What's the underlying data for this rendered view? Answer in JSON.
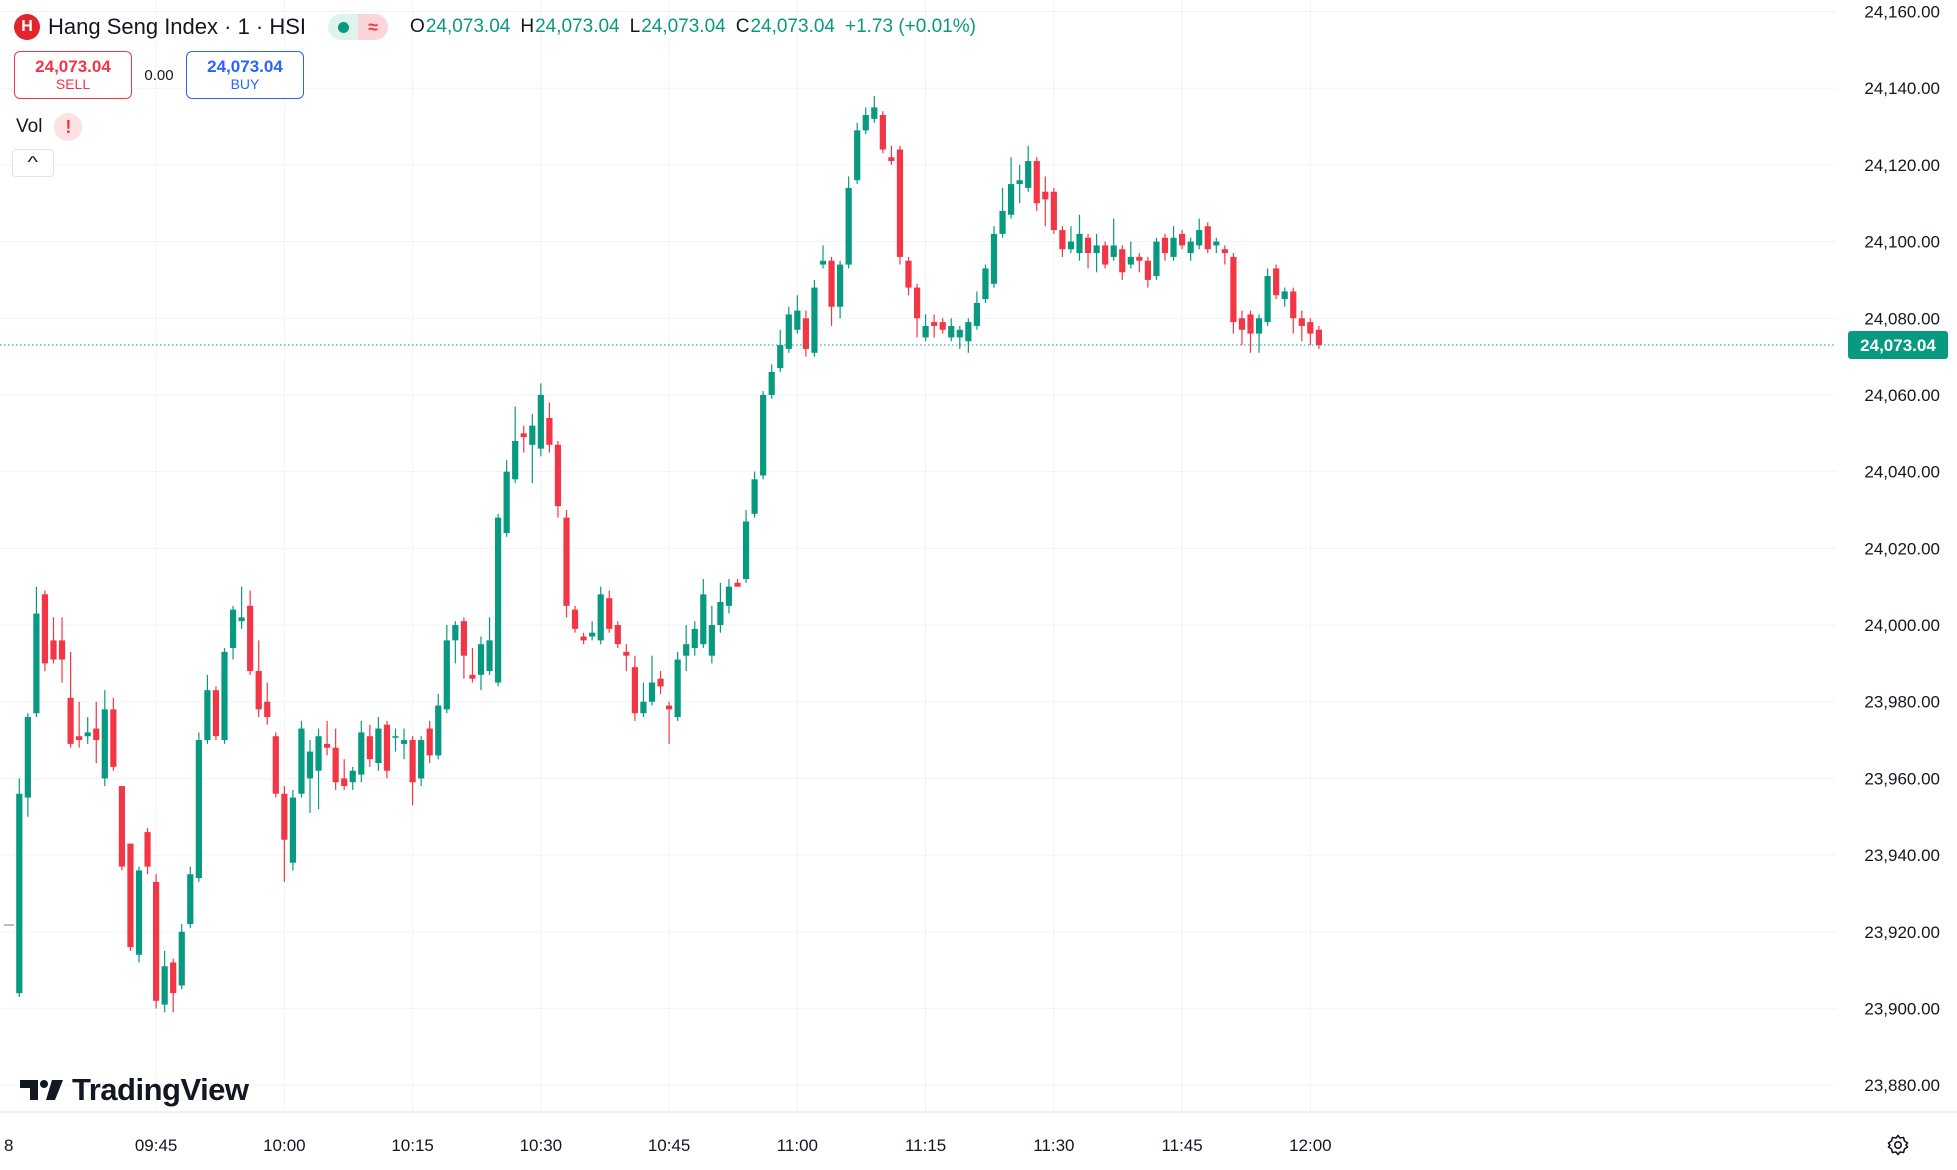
{
  "header": {
    "symbol_title": "Hang Seng Index · 1 · HSI",
    "ohlc": {
      "open_label": "O",
      "open": "24,073.04",
      "high_label": "H",
      "high": "24,073.04",
      "low_label": "L",
      "low": "24,073.04",
      "close_label": "C",
      "close": "24,073.04",
      "change": "+1.73 (+0.01%)"
    },
    "delay_glyph": "≈"
  },
  "trade": {
    "sell_price": "24,073.04",
    "sell_label": "SELL",
    "spread": "0.00",
    "buy_price": "24,073.04",
    "buy_label": "BUY"
  },
  "indicator": {
    "vol_label": "Vol",
    "warning_glyph": "!"
  },
  "brand": {
    "name": "TradingView"
  },
  "colors": {
    "up": "#089981",
    "down": "#f23645",
    "grid": "#f0f3fa",
    "text": "#131722"
  },
  "chart_data": {
    "type": "candlestick",
    "xlabel": "",
    "ylabel": "",
    "ylim": [
      23873,
      24163
    ],
    "y_ticks": [
      23880,
      23900,
      23920,
      23940,
      23960,
      23980,
      24000,
      24020,
      24040,
      24060,
      24080,
      24100,
      24120,
      24140,
      24160
    ],
    "y_tick_labels": [
      "23,880.00",
      "23,900.00",
      "23,920.00",
      "23,940.00",
      "23,960.00",
      "23,980.00",
      "24,000.00",
      "24,020.00",
      "24,040.00",
      "24,060.00",
      "24,080.00",
      "24,100.00",
      "24,120.00",
      "24,140.00",
      "24,160.00"
    ],
    "x_ticks": [
      {
        "minute": 45,
        "label": "09:45"
      },
      {
        "minute": 60,
        "label": "10:00"
      },
      {
        "minute": 75,
        "label": "10:15"
      },
      {
        "minute": 90,
        "label": "10:30"
      },
      {
        "minute": 105,
        "label": "10:45"
      },
      {
        "minute": 120,
        "label": "11:00"
      },
      {
        "minute": 135,
        "label": "11:15"
      },
      {
        "minute": 150,
        "label": "11:30"
      },
      {
        "minute": 165,
        "label": "11:45"
      },
      {
        "minute": 180,
        "label": "12:00"
      }
    ],
    "x_edge_label": "8",
    "last_price": 24073.04,
    "last_price_label": "24,073.04",
    "grid": true,
    "candles": [
      {
        "t": 29,
        "o": 23904,
        "h": 23960,
        "l": 23903,
        "c": 23956
      },
      {
        "t": 30,
        "o": 23955,
        "h": 23977,
        "l": 23950,
        "c": 23976
      },
      {
        "t": 31,
        "o": 23977,
        "h": 24010,
        "l": 23976,
        "c": 24003
      },
      {
        "t": 32,
        "o": 24008,
        "h": 24009,
        "l": 23988,
        "c": 23990
      },
      {
        "t": 33,
        "o": 23996,
        "h": 24002,
        "l": 23990,
        "c": 23991
      },
      {
        "t": 34,
        "o": 23996,
        "h": 24002,
        "l": 23985,
        "c": 23991
      },
      {
        "t": 35,
        "o": 23981,
        "h": 23993,
        "l": 23968,
        "c": 23969
      },
      {
        "t": 36,
        "o": 23971,
        "h": 23980,
        "l": 23968,
        "c": 23970
      },
      {
        "t": 37,
        "o": 23971,
        "h": 23976,
        "l": 23969,
        "c": 23972
      },
      {
        "t": 38,
        "o": 23973,
        "h": 23980,
        "l": 23964,
        "c": 23970
      },
      {
        "t": 39,
        "o": 23960,
        "h": 23983,
        "l": 23958,
        "c": 23978
      },
      {
        "t": 40,
        "o": 23978,
        "h": 23981,
        "l": 23962,
        "c": 23963
      },
      {
        "t": 41,
        "o": 23958,
        "h": 23958,
        "l": 23936,
        "c": 23937
      },
      {
        "t": 42,
        "o": 23943,
        "h": 23943,
        "l": 23915,
        "c": 23916
      },
      {
        "t": 43,
        "o": 23914,
        "h": 23937,
        "l": 23912,
        "c": 23936
      },
      {
        "t": 44,
        "o": 23946,
        "h": 23947,
        "l": 23935,
        "c": 23937
      },
      {
        "t": 45,
        "o": 23933,
        "h": 23935,
        "l": 23900,
        "c": 23902
      },
      {
        "t": 46,
        "o": 23901,
        "h": 23915,
        "l": 23899,
        "c": 23911
      },
      {
        "t": 47,
        "o": 23912,
        "h": 23913,
        "l": 23899,
        "c": 23904
      },
      {
        "t": 48,
        "o": 23906,
        "h": 23922,
        "l": 23905,
        "c": 23920
      },
      {
        "t": 49,
        "o": 23922,
        "h": 23937,
        "l": 23921,
        "c": 23935
      },
      {
        "t": 50,
        "o": 23934,
        "h": 23972,
        "l": 23933,
        "c": 23970
      },
      {
        "t": 51,
        "o": 23970,
        "h": 23987,
        "l": 23969,
        "c": 23983
      },
      {
        "t": 52,
        "o": 23983,
        "h": 23984,
        "l": 23970,
        "c": 23971
      },
      {
        "t": 53,
        "o": 23970,
        "h": 23994,
        "l": 23969,
        "c": 23993
      },
      {
        "t": 54,
        "o": 23994,
        "h": 24005,
        "l": 23991,
        "c": 24004
      },
      {
        "t": 55,
        "o": 24001,
        "h": 24010,
        "l": 23999,
        "c": 24002
      },
      {
        "t": 56,
        "o": 24005,
        "h": 24009,
        "l": 23987,
        "c": 23988
      },
      {
        "t": 57,
        "o": 23988,
        "h": 23996,
        "l": 23976,
        "c": 23978
      },
      {
        "t": 58,
        "o": 23980,
        "h": 23985,
        "l": 23974,
        "c": 23976
      },
      {
        "t": 59,
        "o": 23971,
        "h": 23972,
        "l": 23955,
        "c": 23956
      },
      {
        "t": 60,
        "o": 23956,
        "h": 23958,
        "l": 23933,
        "c": 23944
      },
      {
        "t": 61,
        "o": 23938,
        "h": 23957,
        "l": 23936,
        "c": 23955
      },
      {
        "t": 62,
        "o": 23956,
        "h": 23975,
        "l": 23955,
        "c": 23973
      },
      {
        "t": 63,
        "o": 23960,
        "h": 23970,
        "l": 23951,
        "c": 23967
      },
      {
        "t": 64,
        "o": 23962,
        "h": 23973,
        "l": 23952,
        "c": 23971
      },
      {
        "t": 65,
        "o": 23969,
        "h": 23975,
        "l": 23966,
        "c": 23968
      },
      {
        "t": 66,
        "o": 23968,
        "h": 23973,
        "l": 23957,
        "c": 23959
      },
      {
        "t": 67,
        "o": 23960,
        "h": 23965,
        "l": 23957,
        "c": 23958
      },
      {
        "t": 68,
        "o": 23959,
        "h": 23963,
        "l": 23957,
        "c": 23962
      },
      {
        "t": 69,
        "o": 23961,
        "h": 23975,
        "l": 23959,
        "c": 23972
      },
      {
        "t": 70,
        "o": 23971,
        "h": 23974,
        "l": 23963,
        "c": 23965
      },
      {
        "t": 71,
        "o": 23964,
        "h": 23976,
        "l": 23962,
        "c": 23973
      },
      {
        "t": 72,
        "o": 23974,
        "h": 23975,
        "l": 23960,
        "c": 23962
      },
      {
        "t": 73,
        "o": 23971,
        "h": 23973,
        "l": 23967,
        "c": 23971
      },
      {
        "t": 74,
        "o": 23969,
        "h": 23973,
        "l": 23965,
        "c": 23970
      },
      {
        "t": 75,
        "o": 23970,
        "h": 23971,
        "l": 23953,
        "c": 23959
      },
      {
        "t": 76,
        "o": 23960,
        "h": 23971,
        "l": 23958,
        "c": 23970
      },
      {
        "t": 77,
        "o": 23973,
        "h": 23975,
        "l": 23964,
        "c": 23966
      },
      {
        "t": 78,
        "o": 23966,
        "h": 23982,
        "l": 23965,
        "c": 23979
      },
      {
        "t": 79,
        "o": 23978,
        "h": 24000,
        "l": 23977,
        "c": 23996
      },
      {
        "t": 80,
        "o": 23996,
        "h": 24001,
        "l": 23990,
        "c": 24000
      },
      {
        "t": 81,
        "o": 24001,
        "h": 24002,
        "l": 23986,
        "c": 23992
      },
      {
        "t": 82,
        "o": 23987,
        "h": 23994,
        "l": 23985,
        "c": 23986
      },
      {
        "t": 83,
        "o": 23987,
        "h": 23997,
        "l": 23983,
        "c": 23995
      },
      {
        "t": 84,
        "o": 23988,
        "h": 24002,
        "l": 23987,
        "c": 23996
      },
      {
        "t": 85,
        "o": 23985,
        "h": 24029,
        "l": 23984,
        "c": 24028
      },
      {
        "t": 86,
        "o": 24024,
        "h": 24043,
        "l": 24023,
        "c": 24040
      },
      {
        "t": 87,
        "o": 24038,
        "h": 24057,
        "l": 24037,
        "c": 24048
      },
      {
        "t": 88,
        "o": 24050,
        "h": 24052,
        "l": 24045,
        "c": 24049
      },
      {
        "t": 89,
        "o": 24047,
        "h": 24055,
        "l": 24037,
        "c": 24052
      },
      {
        "t": 90,
        "o": 24046,
        "h": 24063,
        "l": 24044,
        "c": 24060
      },
      {
        "t": 91,
        "o": 24054,
        "h": 24058,
        "l": 24045,
        "c": 24047
      },
      {
        "t": 92,
        "o": 24047,
        "h": 24048,
        "l": 24028,
        "c": 24031
      },
      {
        "t": 93,
        "o": 24028,
        "h": 24030,
        "l": 24002,
        "c": 24005
      },
      {
        "t": 94,
        "o": 24004,
        "h": 24005,
        "l": 23998,
        "c": 23999
      },
      {
        "t": 95,
        "o": 23997,
        "h": 23998,
        "l": 23995,
        "c": 23996
      },
      {
        "t": 96,
        "o": 23997,
        "h": 24001,
        "l": 23996,
        "c": 23998
      },
      {
        "t": 97,
        "o": 23996,
        "h": 24010,
        "l": 23995,
        "c": 24008
      },
      {
        "t": 98,
        "o": 24007,
        "h": 24009,
        "l": 23998,
        "c": 23999
      },
      {
        "t": 99,
        "o": 24000,
        "h": 24001,
        "l": 23994,
        "c": 23995
      },
      {
        "t": 100,
        "o": 23993,
        "h": 23995,
        "l": 23988,
        "c": 23992
      },
      {
        "t": 101,
        "o": 23989,
        "h": 23992,
        "l": 23975,
        "c": 23977
      },
      {
        "t": 102,
        "o": 23977,
        "h": 23985,
        "l": 23976,
        "c": 23980
      },
      {
        "t": 103,
        "o": 23980,
        "h": 23992,
        "l": 23979,
        "c": 23985
      },
      {
        "t": 104,
        "o": 23986,
        "h": 23988,
        "l": 23982,
        "c": 23984
      },
      {
        "t": 105,
        "o": 23979,
        "h": 23980,
        "l": 23969,
        "c": 23978
      },
      {
        "t": 106,
        "o": 23976,
        "h": 23993,
        "l": 23975,
        "c": 23991
      },
      {
        "t": 107,
        "o": 23992,
        "h": 24000,
        "l": 23988,
        "c": 23995
      },
      {
        "t": 108,
        "o": 23994,
        "h": 24001,
        "l": 23992,
        "c": 23999
      },
      {
        "t": 109,
        "o": 23995,
        "h": 24012,
        "l": 23994,
        "c": 24008
      },
      {
        "t": 110,
        "o": 23992,
        "h": 24005,
        "l": 23990,
        "c": 24000
      },
      {
        "t": 111,
        "o": 24000,
        "h": 24011,
        "l": 23998,
        "c": 24006
      },
      {
        "t": 112,
        "o": 24005,
        "h": 24012,
        "l": 24003,
        "c": 24010
      },
      {
        "t": 113,
        "o": 24011,
        "h": 24012,
        "l": 24010,
        "c": 24010
      },
      {
        "t": 114,
        "o": 24012,
        "h": 24030,
        "l": 24011,
        "c": 24027
      },
      {
        "t": 115,
        "o": 24029,
        "h": 24040,
        "l": 24028,
        "c": 24038
      },
      {
        "t": 116,
        "o": 24039,
        "h": 24061,
        "l": 24038,
        "c": 24060
      },
      {
        "t": 117,
        "o": 24060,
        "h": 24068,
        "l": 24059,
        "c": 24066
      },
      {
        "t": 118,
        "o": 24067,
        "h": 24077,
        "l": 24066,
        "c": 24073
      },
      {
        "t": 119,
        "o": 24072,
        "h": 24083,
        "l": 24071,
        "c": 24081
      },
      {
        "t": 120,
        "o": 24077,
        "h": 24086,
        "l": 24076,
        "c": 24082
      },
      {
        "t": 121,
        "o": 24080,
        "h": 24082,
        "l": 24070,
        "c": 24072
      },
      {
        "t": 122,
        "o": 24071,
        "h": 24090,
        "l": 24070,
        "c": 24088
      },
      {
        "t": 123,
        "o": 24094,
        "h": 24099,
        "l": 24093,
        "c": 24095
      },
      {
        "t": 124,
        "o": 24095,
        "h": 24096,
        "l": 24078,
        "c": 24083
      },
      {
        "t": 125,
        "o": 24083,
        "h": 24095,
        "l": 24080,
        "c": 24094
      },
      {
        "t": 126,
        "o": 24094,
        "h": 24117,
        "l": 24093,
        "c": 24114
      },
      {
        "t": 127,
        "o": 24116,
        "h": 24131,
        "l": 24115,
        "c": 24129
      },
      {
        "t": 128,
        "o": 24129,
        "h": 24135,
        "l": 24128,
        "c": 24133
      },
      {
        "t": 129,
        "o": 24132,
        "h": 24138,
        "l": 24131,
        "c": 24135
      },
      {
        "t": 130,
        "o": 24133,
        "h": 24134,
        "l": 24123,
        "c": 24124
      },
      {
        "t": 131,
        "o": 24122,
        "h": 24125,
        "l": 24120,
        "c": 24121
      },
      {
        "t": 132,
        "o": 24124,
        "h": 24125,
        "l": 24094,
        "c": 24096
      },
      {
        "t": 133,
        "o": 24095,
        "h": 24096,
        "l": 24086,
        "c": 24088
      },
      {
        "t": 134,
        "o": 24088,
        "h": 24089,
        "l": 24075,
        "c": 24080
      },
      {
        "t": 135,
        "o": 24075,
        "h": 24081,
        "l": 24074,
        "c": 24078
      },
      {
        "t": 136,
        "o": 24079,
        "h": 24081,
        "l": 24075,
        "c": 24078
      },
      {
        "t": 137,
        "o": 24079,
        "h": 24080,
        "l": 24076,
        "c": 24077
      },
      {
        "t": 138,
        "o": 24075,
        "h": 24080,
        "l": 24074,
        "c": 24078
      },
      {
        "t": 139,
        "o": 24075,
        "h": 24078,
        "l": 24072,
        "c": 24077
      },
      {
        "t": 140,
        "o": 24074,
        "h": 24080,
        "l": 24071,
        "c": 24079
      },
      {
        "t": 141,
        "o": 24078,
        "h": 24087,
        "l": 24077,
        "c": 24084
      },
      {
        "t": 142,
        "o": 24085,
        "h": 24094,
        "l": 24084,
        "c": 24093
      },
      {
        "t": 143,
        "o": 24089,
        "h": 24104,
        "l": 24088,
        "c": 24102
      },
      {
        "t": 144,
        "o": 24102,
        "h": 24114,
        "l": 24101,
        "c": 24108
      },
      {
        "t": 145,
        "o": 24107,
        "h": 24122,
        "l": 24106,
        "c": 24115
      },
      {
        "t": 146,
        "o": 24115,
        "h": 24120,
        "l": 24110,
        "c": 24116
      },
      {
        "t": 147,
        "o": 24114,
        "h": 24125,
        "l": 24113,
        "c": 24121
      },
      {
        "t": 148,
        "o": 24121,
        "h": 24122,
        "l": 24108,
        "c": 24110
      },
      {
        "t": 149,
        "o": 24113,
        "h": 24117,
        "l": 24104,
        "c": 24111
      },
      {
        "t": 150,
        "o": 24113,
        "h": 24114,
        "l": 24102,
        "c": 24103
      },
      {
        "t": 151,
        "o": 24103,
        "h": 24104,
        "l": 24096,
        "c": 24098
      },
      {
        "t": 152,
        "o": 24098,
        "h": 24104,
        "l": 24097,
        "c": 24100
      },
      {
        "t": 153,
        "o": 24097,
        "h": 24107,
        "l": 24095,
        "c": 24102
      },
      {
        "t": 154,
        "o": 24101,
        "h": 24102,
        "l": 24093,
        "c": 24097
      },
      {
        "t": 155,
        "o": 24097,
        "h": 24102,
        "l": 24092,
        "c": 24099
      },
      {
        "t": 156,
        "o": 24099,
        "h": 24100,
        "l": 24093,
        "c": 24094
      },
      {
        "t": 157,
        "o": 24096,
        "h": 24106,
        "l": 24095,
        "c": 24099
      },
      {
        "t": 158,
        "o": 24098,
        "h": 24099,
        "l": 24090,
        "c": 24092
      },
      {
        "t": 159,
        "o": 24094,
        "h": 24100,
        "l": 24093,
        "c": 24096
      },
      {
        "t": 160,
        "o": 24096,
        "h": 24097,
        "l": 24092,
        "c": 24095
      },
      {
        "t": 161,
        "o": 24095,
        "h": 24096,
        "l": 24088,
        "c": 24090
      },
      {
        "t": 162,
        "o": 24091,
        "h": 24101,
        "l": 24090,
        "c": 24100
      },
      {
        "t": 163,
        "o": 24101,
        "h": 24102,
        "l": 24095,
        "c": 24097
      },
      {
        "t": 164,
        "o": 24096,
        "h": 24104,
        "l": 24095,
        "c": 24101
      },
      {
        "t": 165,
        "o": 24102,
        "h": 24103,
        "l": 24098,
        "c": 24099
      },
      {
        "t": 166,
        "o": 24097,
        "h": 24101,
        "l": 24095,
        "c": 24100
      },
      {
        "t": 167,
        "o": 24099,
        "h": 24106,
        "l": 24098,
        "c": 24103
      },
      {
        "t": 168,
        "o": 24104,
        "h": 24105,
        "l": 24097,
        "c": 24098
      },
      {
        "t": 169,
        "o": 24099,
        "h": 24101,
        "l": 24097,
        "c": 24100
      },
      {
        "t": 170,
        "o": 24098,
        "h": 24099,
        "l": 24094,
        "c": 24097
      },
      {
        "t": 171,
        "o": 24096,
        "h": 24097,
        "l": 24076,
        "c": 24079
      },
      {
        "t": 172,
        "o": 24080,
        "h": 24082,
        "l": 24073,
        "c": 24077
      },
      {
        "t": 173,
        "o": 24081,
        "h": 24082,
        "l": 24071,
        "c": 24076
      },
      {
        "t": 174,
        "o": 24076,
        "h": 24081,
        "l": 24071,
        "c": 24080
      },
      {
        "t": 175,
        "o": 24079,
        "h": 24093,
        "l": 24078,
        "c": 24091
      },
      {
        "t": 176,
        "o": 24093,
        "h": 24094,
        "l": 24085,
        "c": 24086
      },
      {
        "t": 177,
        "o": 24085,
        "h": 24088,
        "l": 24083,
        "c": 24087
      },
      {
        "t": 178,
        "o": 24087,
        "h": 24088,
        "l": 24076,
        "c": 24080
      },
      {
        "t": 179,
        "o": 24080,
        "h": 24082,
        "l": 24074,
        "c": 24078
      },
      {
        "t": 180,
        "o": 24079,
        "h": 24080,
        "l": 24073,
        "c": 24076
      },
      {
        "t": 181,
        "o": 24077,
        "h": 24078,
        "l": 24072,
        "c": 24073
      }
    ]
  }
}
